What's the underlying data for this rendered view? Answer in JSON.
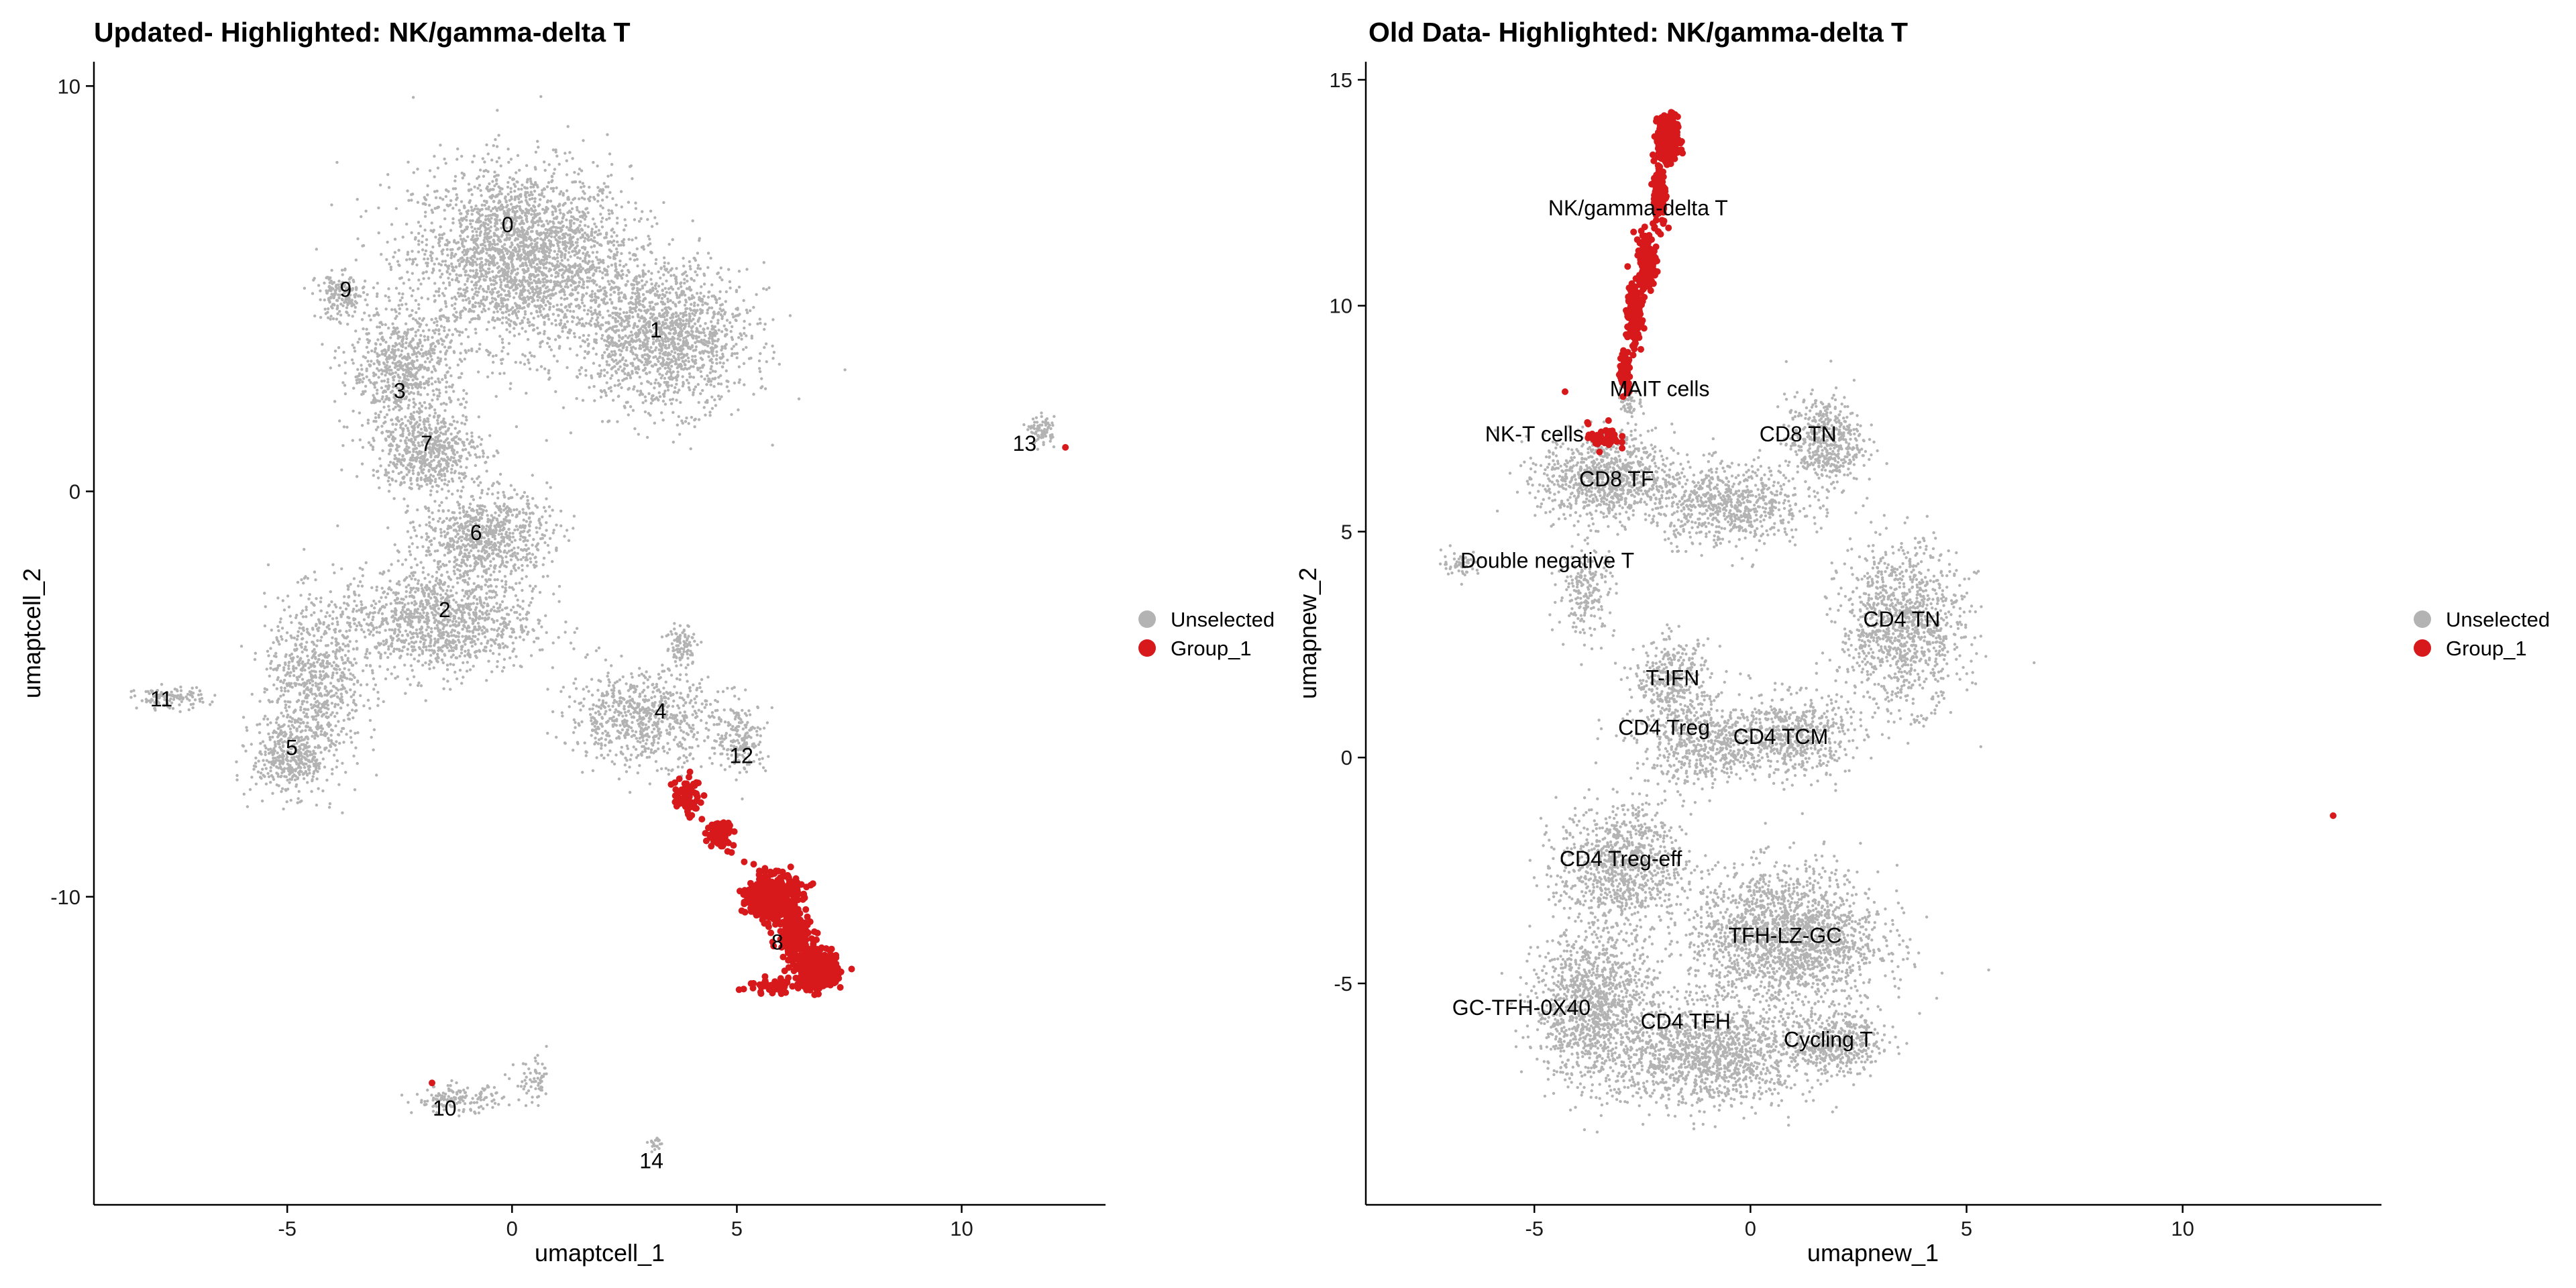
{
  "chart_data": [
    {
      "type": "scatter",
      "title": "Updated- Highlighted: NK/gamma-delta T",
      "xlabel": "umaptcell_1",
      "ylabel": "umaptcell_2",
      "xlim": [
        -9.3,
        13.2
      ],
      "ylim": [
        -17.6,
        10.6
      ],
      "xticks": [
        -5,
        0,
        5,
        10
      ],
      "yticks": [
        -10,
        0,
        10
      ],
      "xtick_labels": [
        "-5",
        "0",
        "5",
        "10"
      ],
      "ytick_labels": [
        "-10",
        "0",
        "10"
      ],
      "legend": {
        "position": "right",
        "entries": [
          {
            "label": "Unselected",
            "color": "#b3b3b3"
          },
          {
            "label": "Group_1",
            "color": "#d7191c"
          }
        ]
      },
      "cluster_labels": [
        {
          "text": "0",
          "x": -0.1,
          "y": 6.4
        },
        {
          "text": "1",
          "x": 3.2,
          "y": 3.8
        },
        {
          "text": "2",
          "x": -1.5,
          "y": -3.1
        },
        {
          "text": "3",
          "x": -2.5,
          "y": 2.3
        },
        {
          "text": "4",
          "x": 3.3,
          "y": -5.6
        },
        {
          "text": "5",
          "x": -4.9,
          "y": -6.5
        },
        {
          "text": "6",
          "x": -0.8,
          "y": -1.2
        },
        {
          "text": "7",
          "x": -1.9,
          "y": 1.0
        },
        {
          "text": "8",
          "x": 5.9,
          "y": -11.3
        },
        {
          "text": "9",
          "x": -3.7,
          "y": 4.8
        },
        {
          "text": "10",
          "x": -1.5,
          "y": -15.4
        },
        {
          "text": "11",
          "x": -7.8,
          "y": -5.3
        },
        {
          "text": "12",
          "x": 5.1,
          "y": -6.7
        },
        {
          "text": "13",
          "x": 11.4,
          "y": 1.0
        },
        {
          "text": "14",
          "x": 3.1,
          "y": -16.7
        }
      ]
    },
    {
      "type": "scatter",
      "title": "Old Data- Highlighted: NK/gamma-delta T",
      "xlabel": "umapnew_1",
      "ylabel": "umapnew_2",
      "xlim": [
        -8.9,
        14.6
      ],
      "ylim": [
        -9.9,
        15.4
      ],
      "xticks": [
        -5,
        0,
        5,
        10
      ],
      "yticks": [
        -5,
        0,
        5,
        10,
        15
      ],
      "xtick_labels": [
        "-5",
        "0",
        "5",
        "10"
      ],
      "ytick_labels": [
        "-5",
        "0",
        "5",
        "10",
        "15"
      ],
      "legend": {
        "position": "right",
        "entries": [
          {
            "label": "Unselected",
            "color": "#b3b3b3"
          },
          {
            "label": "Group_1",
            "color": "#d7191c"
          }
        ]
      },
      "cluster_labels": [
        {
          "text": "NK/gamma-delta T",
          "x": -2.6,
          "y": 12.0
        },
        {
          "text": "MAIT cells",
          "x": -2.1,
          "y": 8.0
        },
        {
          "text": "NK-T cells",
          "x": -5.0,
          "y": 7.0
        },
        {
          "text": "CD8 TN",
          "x": 1.1,
          "y": 7.0
        },
        {
          "text": "CD8 TF",
          "x": -3.1,
          "y": 6.0
        },
        {
          "text": "Double negative T",
          "x": -4.7,
          "y": 4.2
        },
        {
          "text": "CD4 TN",
          "x": 3.5,
          "y": 2.9
        },
        {
          "text": "T-IFN",
          "x": -1.8,
          "y": 1.6
        },
        {
          "text": "CD4 Treg",
          "x": -2.0,
          "y": 0.5
        },
        {
          "text": "CD4 TCM",
          "x": 0.7,
          "y": 0.3
        },
        {
          "text": "CD4 Treg-eff",
          "x": -3.0,
          "y": -2.4
        },
        {
          "text": "TFH-LZ-GC",
          "x": 0.8,
          "y": -4.1
        },
        {
          "text": "GC-TFH-0X40",
          "x": -5.3,
          "y": -5.7
        },
        {
          "text": "CD4 TFH",
          "x": -1.5,
          "y": -6.0
        },
        {
          "text": "Cycling T",
          "x": 1.8,
          "y": -6.4
        }
      ]
    }
  ]
}
